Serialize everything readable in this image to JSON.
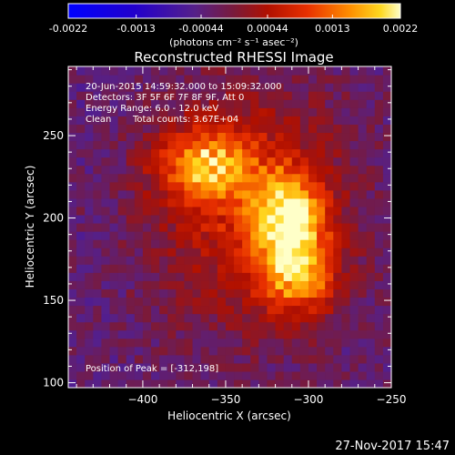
{
  "chart_data": {
    "type": "heatmap",
    "title": "Reconstructed RHESSI Image",
    "xlabel": "Heliocentric X (arcsec)",
    "ylabel": "Heliocentric Y (arcsec)",
    "xlim": [
      -445,
      -250
    ],
    "ylim": [
      97,
      292
    ],
    "x_ticks": [
      -400,
      -350,
      -300,
      -250
    ],
    "y_ticks": [
      100,
      150,
      200,
      250
    ],
    "colorbar": {
      "ticks": [
        "-0.0022",
        "-0.0013",
        "-0.00044",
        "0.00044",
        "0.0013",
        "0.0022"
      ],
      "range": [
        -0.0022,
        0.0022
      ],
      "units_label": "(photons cm⁻² s⁻¹ asec⁻²)"
    },
    "annotations": {
      "time_range": "20-Jun-2015 14:59:32.000 to 15:09:32.000",
      "detectors": "Detectors: 3F 5F 6F 7F 8F 9F, Att 0",
      "energy": "Energy Range: 6.0 - 12.0 keV",
      "method": "Clean",
      "counts": "Total counts: 3.67E+04",
      "peak": "Position of Peak = [-312,198]"
    },
    "sources": [
      {
        "x": -362,
        "y": 232,
        "intensity": 0.00155,
        "sx": 20,
        "sy": 16
      },
      {
        "x": -312,
        "y": 198,
        "intensity": 0.0022,
        "sx": 15,
        "sy": 19
      },
      {
        "x": -305,
        "y": 162,
        "intensity": 0.0013,
        "sx": 16,
        "sy": 14
      },
      {
        "x": -335,
        "y": 205,
        "intensity": 0.001,
        "sx": 42,
        "sy": 52
      }
    ],
    "background": -0.00035
  },
  "footer": {
    "date": "27-Nov-2017 15:47"
  }
}
